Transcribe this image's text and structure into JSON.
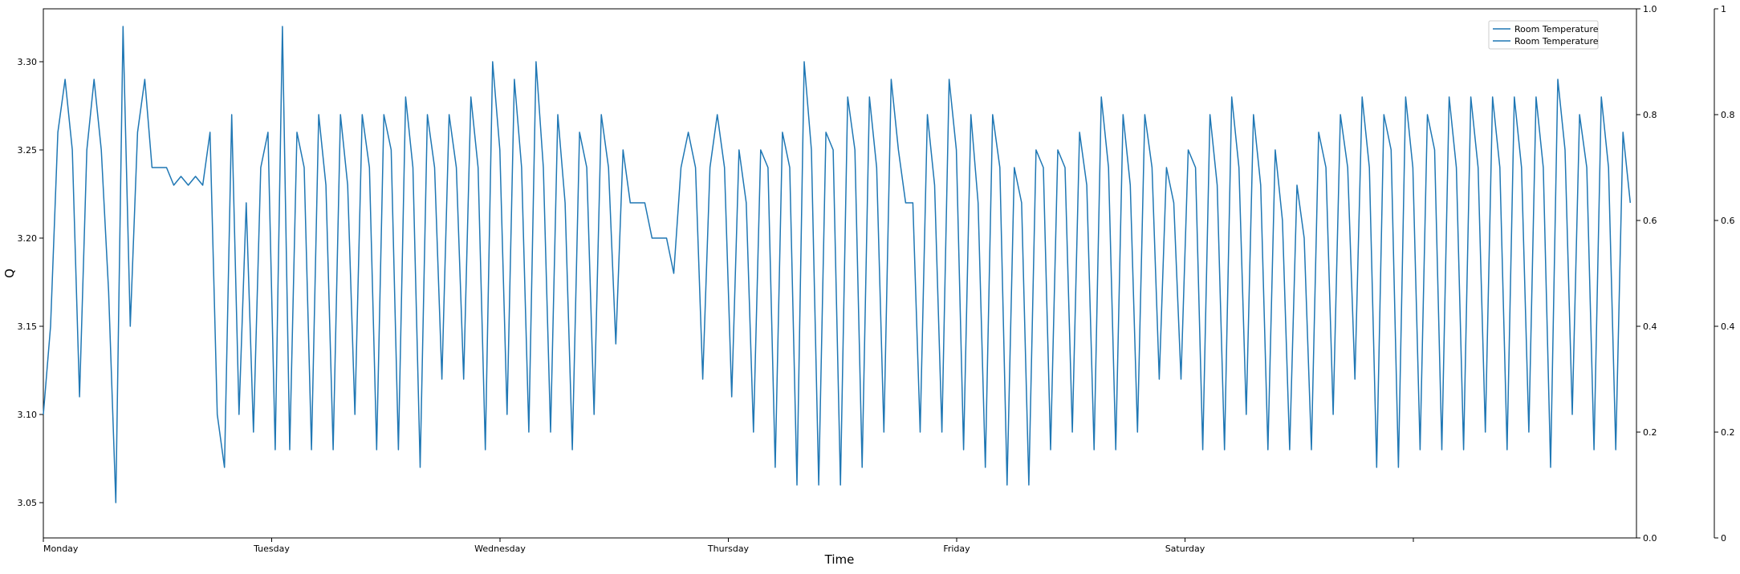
{
  "chart_data": {
    "type": "line",
    "title": "",
    "xlabel": "Time",
    "ylabel": "Q",
    "x_tick_labels": [
      "Monday",
      "Tuesday",
      "Wednesday",
      "Thursday",
      "Friday",
      "Saturday",
      ""
    ],
    "ylim": [
      3.03,
      3.33
    ],
    "y_ticks": [
      "3.05",
      "3.10",
      "3.15",
      "3.20",
      "3.25",
      "3.30"
    ],
    "secondary_axis_ticks": [
      "0.0",
      "0.2",
      "0.4",
      "0.6",
      "0.8",
      "1.0"
    ],
    "tertiary_axis_ticks": [
      "0",
      "0.2",
      "0.4",
      "0.6",
      "0.8",
      "1"
    ],
    "grid": false,
    "legend": {
      "placement": "top-right",
      "entries": [
        "Room Temperature",
        "Room Temperature"
      ]
    },
    "series": [
      {
        "name": "Room Temperature",
        "color": "#1f77b4",
        "x_range_days": [
          0,
          6.95
        ],
        "y": [
          3.1,
          3.15,
          3.26,
          3.29,
          3.25,
          3.11,
          3.25,
          3.29,
          3.25,
          3.17,
          3.05,
          3.32,
          3.15,
          3.26,
          3.29,
          3.24,
          3.24,
          3.24,
          3.23,
          3.235,
          3.23,
          3.235,
          3.23,
          3.26,
          3.1,
          3.07,
          3.27,
          3.1,
          3.22,
          3.09,
          3.24,
          3.26,
          3.08,
          3.32,
          3.08,
          3.26,
          3.24,
          3.08,
          3.27,
          3.23,
          3.08,
          3.27,
          3.23,
          3.1,
          3.27,
          3.24,
          3.08,
          3.27,
          3.25,
          3.08,
          3.28,
          3.24,
          3.07,
          3.27,
          3.24,
          3.12,
          3.27,
          3.24,
          3.12,
          3.28,
          3.24,
          3.08,
          3.3,
          3.25,
          3.1,
          3.29,
          3.24,
          3.09,
          3.3,
          3.24,
          3.09,
          3.27,
          3.22,
          3.08,
          3.26,
          3.24,
          3.1,
          3.27,
          3.24,
          3.14,
          3.25,
          3.22,
          3.22,
          3.22,
          3.2,
          3.2,
          3.2,
          3.18,
          3.24,
          3.26,
          3.24,
          3.12,
          3.24,
          3.27,
          3.24,
          3.11,
          3.25,
          3.22,
          3.09,
          3.25,
          3.24,
          3.07,
          3.26,
          3.24,
          3.06,
          3.3,
          3.25,
          3.06,
          3.26,
          3.25,
          3.06,
          3.28,
          3.25,
          3.07,
          3.28,
          3.24,
          3.09,
          3.29,
          3.25,
          3.22,
          3.22,
          3.09,
          3.27,
          3.23,
          3.09,
          3.29,
          3.25,
          3.08,
          3.27,
          3.22,
          3.07,
          3.27,
          3.24,
          3.06,
          3.24,
          3.22,
          3.06,
          3.25,
          3.24,
          3.08,
          3.25,
          3.24,
          3.09,
          3.26,
          3.23,
          3.08,
          3.28,
          3.24,
          3.08,
          3.27,
          3.23,
          3.09,
          3.27,
          3.24,
          3.12,
          3.24,
          3.22,
          3.12,
          3.25,
          3.24,
          3.08,
          3.27,
          3.23,
          3.08,
          3.28,
          3.24,
          3.1,
          3.27,
          3.23,
          3.08,
          3.25,
          3.21,
          3.08,
          3.23,
          3.2,
          3.08,
          3.26,
          3.24,
          3.1,
          3.27,
          3.24,
          3.12,
          3.28,
          3.24,
          3.07,
          3.27,
          3.25,
          3.07,
          3.28,
          3.24,
          3.08,
          3.27,
          3.25,
          3.08,
          3.28,
          3.24,
          3.08,
          3.28,
          3.24,
          3.09,
          3.28,
          3.24,
          3.08,
          3.28,
          3.24,
          3.09,
          3.28,
          3.24,
          3.07,
          3.29,
          3.25,
          3.1,
          3.27,
          3.24,
          3.08,
          3.28,
          3.24,
          3.08,
          3.26,
          3.22
        ]
      }
    ]
  }
}
